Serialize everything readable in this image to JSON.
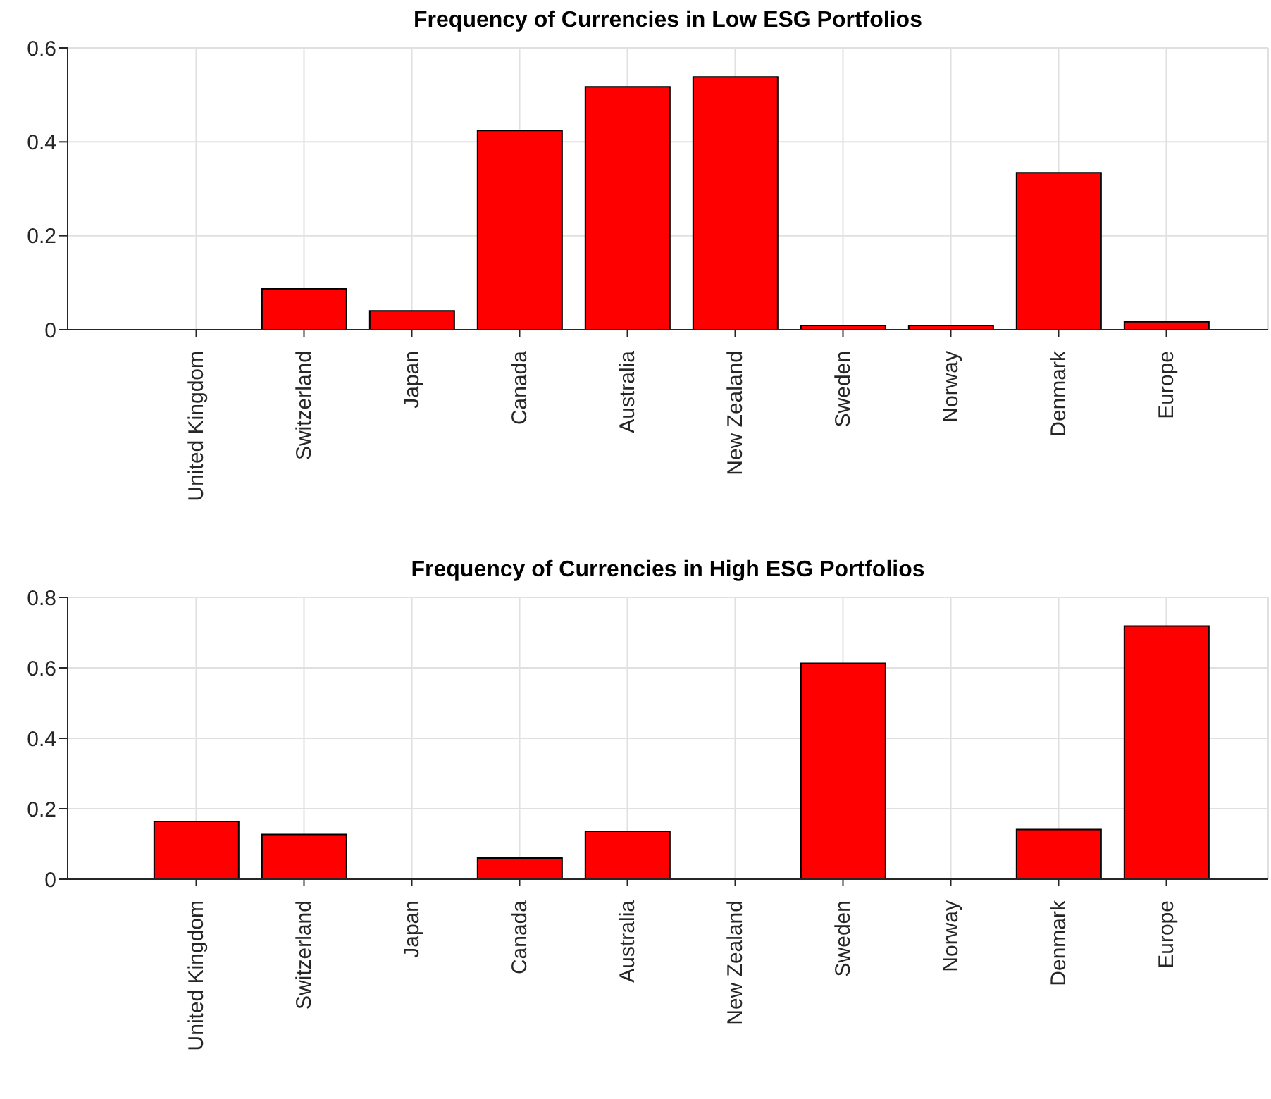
{
  "chart_data": [
    {
      "type": "bar",
      "title": "Frequency of Currencies in Low ESG Portfolios",
      "categories": [
        "United Kingdom",
        "Switzerland",
        "Japan",
        "Canada",
        "Australia",
        "New Zealand",
        "Sweden",
        "Norway",
        "Denmark",
        "Europe"
      ],
      "values": [
        0,
        0.087,
        0.04,
        0.424,
        0.517,
        0.538,
        0.009,
        0.009,
        0.334,
        0.017
      ],
      "color": "#ff0000",
      "ylim": [
        0,
        0.6
      ],
      "yticks": [
        0,
        0.2,
        0.4,
        0.6
      ],
      "grid": true
    },
    {
      "type": "bar",
      "title": "Frequency of Currencies in High ESG Portfolios",
      "categories": [
        "United Kingdom",
        "Switzerland",
        "Japan",
        "Canada",
        "Australia",
        "New Zealand",
        "Sweden",
        "Norway",
        "Denmark",
        "Europe"
      ],
      "values": [
        0.164,
        0.127,
        0,
        0.06,
        0.136,
        0,
        0.613,
        0,
        0.141,
        0.719
      ],
      "color": "#ff0000",
      "ylim": [
        0,
        0.8
      ],
      "yticks": [
        0,
        0.2,
        0.4,
        0.6,
        0.8
      ],
      "grid": true
    }
  ]
}
